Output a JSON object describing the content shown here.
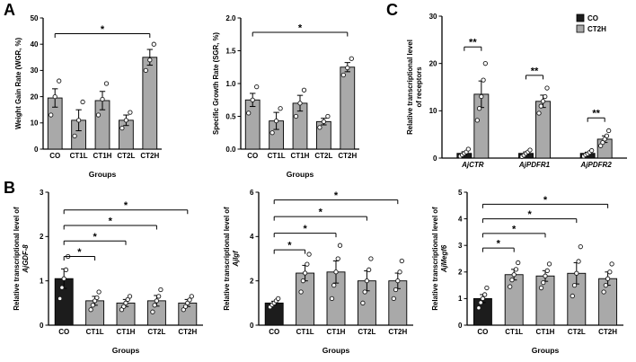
{
  "panel_labels": [
    "A",
    "B",
    "C"
  ],
  "colors": {
    "bar_gray": "#a9a9a9",
    "bar_black": "#1c1c1c",
    "axis": "#000000",
    "point_fill": "#ffffff"
  },
  "groups": [
    "CO",
    "CT1L",
    "CT1H",
    "CT2L",
    "CT2H"
  ],
  "chart_data": [
    {
      "id": "wgr",
      "type": "bar",
      "panel": "A",
      "ylabel_lines": [
        {
          "text": "Weight Gain Rate (WGR, %)",
          "italic": false
        }
      ],
      "xlabel": "Groups",
      "categories": [
        "CO",
        "CT1L",
        "CT1H",
        "CT2L",
        "CT2H"
      ],
      "values": [
        19.5,
        11,
        18.5,
        11,
        35
      ],
      "errors": [
        3.5,
        4,
        3.5,
        2,
        3
      ],
      "points": [
        [
          13,
          20,
          26
        ],
        [
          5,
          11,
          18
        ],
        [
          13,
          19,
          25
        ],
        [
          8,
          11,
          14
        ],
        [
          30,
          34,
          40
        ]
      ],
      "bar_colors": [
        "gray",
        "gray",
        "gray",
        "gray",
        "gray"
      ],
      "ylim": [
        0,
        50
      ],
      "yticks": [
        "0",
        "10",
        "20",
        "30",
        "40",
        "50"
      ],
      "sig": [
        {
          "from": 0,
          "to": 4,
          "label": "*",
          "y": 44
        }
      ]
    },
    {
      "id": "sgr",
      "type": "bar",
      "panel": "A",
      "ylabel_lines": [
        {
          "text": "Specific Growth Rate (SGR, %)",
          "italic": false
        }
      ],
      "xlabel": "Groups",
      "categories": [
        "CO",
        "CT1L",
        "CT1H",
        "CT2L",
        "CT2H"
      ],
      "values": [
        0.75,
        0.43,
        0.7,
        0.42,
        1.25
      ],
      "errors": [
        0.1,
        0.13,
        0.12,
        0.05,
        0.07
      ],
      "points": [
        [
          0.55,
          0.75,
          0.95
        ],
        [
          0.25,
          0.43,
          0.62
        ],
        [
          0.5,
          0.7,
          0.9
        ],
        [
          0.33,
          0.42,
          0.5
        ],
        [
          1.13,
          1.24,
          1.38
        ]
      ],
      "bar_colors": [
        "gray",
        "gray",
        "gray",
        "gray",
        "gray"
      ],
      "ylim": [
        0,
        2
      ],
      "yticks": [
        "0.0",
        "0.5",
        "1.0",
        "1.5",
        "2.0"
      ],
      "sig": [
        {
          "from": 0,
          "to": 4,
          "label": "*",
          "y": 1.78
        }
      ]
    },
    {
      "id": "receptors",
      "type": "grouped_bar",
      "panel": "C",
      "ylabel_lines": [
        {
          "text": "Relative transcriptional level",
          "italic": false
        },
        {
          "text": "of receptors",
          "italic": false
        }
      ],
      "xlabel": "",
      "categories": [
        "AjCTR",
        "AjPDFR1",
        "AjPDFR2"
      ],
      "categories_italic": true,
      "series": [
        {
          "name": "CO",
          "color": "black",
          "values": [
            1,
            1,
            1
          ],
          "errors": [
            0.35,
            0.3,
            0.25
          ],
          "points": [
            [
              0.4,
              0.7,
              1.0,
              1.3,
              1.9
            ],
            [
              0.3,
              0.6,
              1.0,
              1.3,
              1.7
            ],
            [
              0.4,
              0.7,
              0.9,
              1.2,
              1.6
            ]
          ]
        },
        {
          "name": "CT2H",
          "color": "gray",
          "values": [
            13.5,
            12,
            4
          ],
          "errors": [
            2.8,
            1.3,
            0.7
          ],
          "points": [
            [
              8,
              10.5,
              13,
              16.5,
              20
            ],
            [
              9.5,
              11,
              12,
              13,
              14.8
            ],
            [
              2.6,
              3.3,
              4,
              4.7,
              5.8
            ]
          ]
        }
      ],
      "ylim": [
        0,
        30
      ],
      "yticks": [
        "0",
        "10",
        "20",
        "30"
      ],
      "legend": [
        {
          "label": "CO",
          "color": "black"
        },
        {
          "label": "CT2H",
          "color": "gray"
        }
      ],
      "sig": [
        {
          "cat": 0,
          "label": "**",
          "y": 23.5
        },
        {
          "cat": 1,
          "label": "**",
          "y": 17.5
        },
        {
          "cat": 2,
          "label": "**",
          "y": 8.5
        }
      ]
    },
    {
      "id": "gdf8",
      "type": "bar",
      "panel": "B",
      "ylabel_lines": [
        {
          "text": "Relative transcriptional level of",
          "italic": false
        },
        {
          "text": "AjGDF-8",
          "italic": true
        }
      ],
      "xlabel": "Groups",
      "categories": [
        "CO",
        "CT1L",
        "CT1H",
        "CT2L",
        "CT2H"
      ],
      "values": [
        1.05,
        0.55,
        0.5,
        0.55,
        0.5
      ],
      "errors": [
        0.22,
        0.1,
        0.08,
        0.12,
        0.08
      ],
      "points": [
        [
          0.6,
          0.85,
          1.05,
          1.25,
          1.55
        ],
        [
          0.35,
          0.45,
          0.55,
          0.62,
          0.75
        ],
        [
          0.35,
          0.42,
          0.5,
          0.58,
          0.65
        ],
        [
          0.3,
          0.45,
          0.55,
          0.65,
          0.8
        ],
        [
          0.35,
          0.42,
          0.5,
          0.57,
          0.65
        ]
      ],
      "bar_colors": [
        "black",
        "gray",
        "gray",
        "gray",
        "gray"
      ],
      "ylim": [
        0,
        3
      ],
      "yticks": [
        "0",
        "1",
        "2",
        "3"
      ],
      "sig": [
        {
          "from": 0,
          "to": 1,
          "label": "*",
          "y": 1.55
        },
        {
          "from": 0,
          "to": 2,
          "label": "*",
          "y": 1.9
        },
        {
          "from": 0,
          "to": 3,
          "label": "*",
          "y": 2.25
        },
        {
          "from": 0,
          "to": 4,
          "label": "*",
          "y": 2.6
        }
      ]
    },
    {
      "id": "igf",
      "type": "bar",
      "panel": "B",
      "ylabel_lines": [
        {
          "text": "Relative transcriptional level of",
          "italic": false
        },
        {
          "text": "AjIgf",
          "italic": true
        }
      ],
      "xlabel": "Groups",
      "categories": [
        "CO",
        "CT1L",
        "CT1H",
        "CT2L",
        "CT2H"
      ],
      "values": [
        1.0,
        2.35,
        2.4,
        2.0,
        2.0
      ],
      "errors": [
        0.08,
        0.35,
        0.5,
        0.45,
        0.35
      ],
      "points": [
        [
          0.82,
          0.92,
          1.0,
          1.1,
          1.2
        ],
        [
          1.5,
          2.0,
          2.35,
          2.75,
          3.2
        ],
        [
          1.2,
          1.8,
          2.4,
          3.0,
          3.6
        ],
        [
          1.0,
          1.5,
          2.0,
          2.5,
          3.0
        ],
        [
          1.2,
          1.6,
          2.0,
          2.4,
          2.9
        ]
      ],
      "bar_colors": [
        "black",
        "gray",
        "gray",
        "gray",
        "gray"
      ],
      "ylim": [
        0,
        6
      ],
      "yticks": [
        "0",
        "2",
        "4",
        "6"
      ],
      "sig": [
        {
          "from": 0,
          "to": 1,
          "label": "*",
          "y": 3.4
        },
        {
          "from": 0,
          "to": 2,
          "label": "*",
          "y": 4.15
        },
        {
          "from": 0,
          "to": 3,
          "label": "*",
          "y": 4.9
        },
        {
          "from": 0,
          "to": 4,
          "label": "*",
          "y": 5.65
        }
      ]
    },
    {
      "id": "megf6",
      "type": "bar",
      "panel": "B",
      "ylabel_lines": [
        {
          "text": "Relative transcriptional level of",
          "italic": false
        },
        {
          "text": "AjMegf6",
          "italic": true
        }
      ],
      "xlabel": "Groups",
      "categories": [
        "CO",
        "CT1L",
        "CT1H",
        "CT2L",
        "CT2H"
      ],
      "values": [
        1.0,
        1.9,
        1.85,
        1.95,
        1.75
      ],
      "errors": [
        0.15,
        0.2,
        0.2,
        0.4,
        0.25
      ],
      "points": [
        [
          0.65,
          0.85,
          1.0,
          1.15,
          1.4
        ],
        [
          1.45,
          1.7,
          1.9,
          2.1,
          2.35
        ],
        [
          1.4,
          1.6,
          1.85,
          2.05,
          2.3
        ],
        [
          1.1,
          1.5,
          1.95,
          2.4,
          2.95
        ],
        [
          1.25,
          1.5,
          1.75,
          2.0,
          2.3
        ]
      ],
      "bar_colors": [
        "black",
        "gray",
        "gray",
        "gray",
        "gray"
      ],
      "ylim": [
        0,
        5
      ],
      "yticks": [
        "0",
        "1",
        "2",
        "3",
        "4",
        "5"
      ],
      "sig": [
        {
          "from": 0,
          "to": 1,
          "label": "*",
          "y": 2.9
        },
        {
          "from": 0,
          "to": 2,
          "label": "*",
          "y": 3.45
        },
        {
          "from": 0,
          "to": 3,
          "label": "*",
          "y": 4.0
        },
        {
          "from": 0,
          "to": 4,
          "label": "*",
          "y": 4.55
        }
      ]
    }
  ]
}
